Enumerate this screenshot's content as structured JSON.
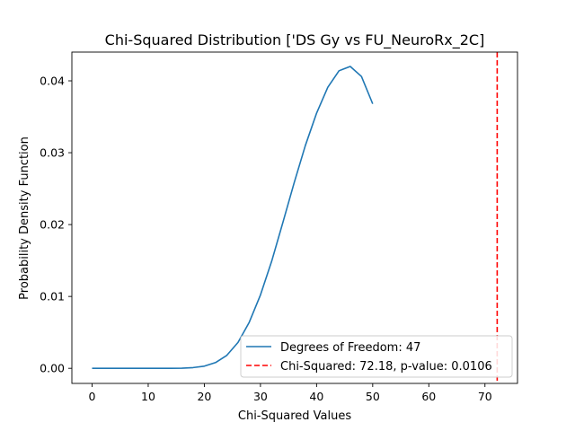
{
  "chart_data": {
    "type": "line",
    "title": "Chi-Squared Distribution ['DS Gy vs FU_NeuroRx_2C]",
    "xlabel": "Chi-Squared Values",
    "ylabel": "Probability Density Function",
    "xlim": [
      -3.6,
      75.8
    ],
    "ylim": [
      -0.0021,
      0.044
    ],
    "xticks": [
      0,
      10,
      20,
      30,
      40,
      50,
      60,
      70
    ],
    "yticks": [
      0.0,
      0.01,
      0.02,
      0.03,
      0.04
    ],
    "xtick_labels": [
      "0",
      "10",
      "20",
      "30",
      "40",
      "50",
      "60",
      "70"
    ],
    "ytick_labels": [
      "0.00",
      "0.01",
      "0.02",
      "0.03",
      "0.04"
    ],
    "grid": false,
    "legend_position": "lower right",
    "series": [
      {
        "name": "Degrees of Freedom: 47",
        "kind": "line",
        "color": "#1f77b4",
        "x": [
          0,
          2,
          4,
          6,
          8,
          10,
          12,
          14,
          16,
          18,
          20,
          22,
          24,
          26,
          28,
          30,
          32,
          34,
          36,
          38,
          40,
          42,
          44,
          46,
          48,
          50
        ],
        "y": [
          0.0,
          0.0,
          0.0,
          0.0,
          0.0,
          0.0,
          0.0,
          0.0,
          2e-05,
          0.0001,
          0.0003,
          0.0008,
          0.0018,
          0.0036,
          0.0064,
          0.0102,
          0.0149,
          0.0203,
          0.0258,
          0.031,
          0.0355,
          0.0391,
          0.0414,
          0.042,
          0.0406,
          0.0368
        ]
      }
    ],
    "vlines": [
      {
        "name": "Chi-Squared: 72.18, p-value: 0.0106",
        "x": 72.18,
        "color": "#ff0000",
        "style": "dashed"
      }
    ]
  }
}
